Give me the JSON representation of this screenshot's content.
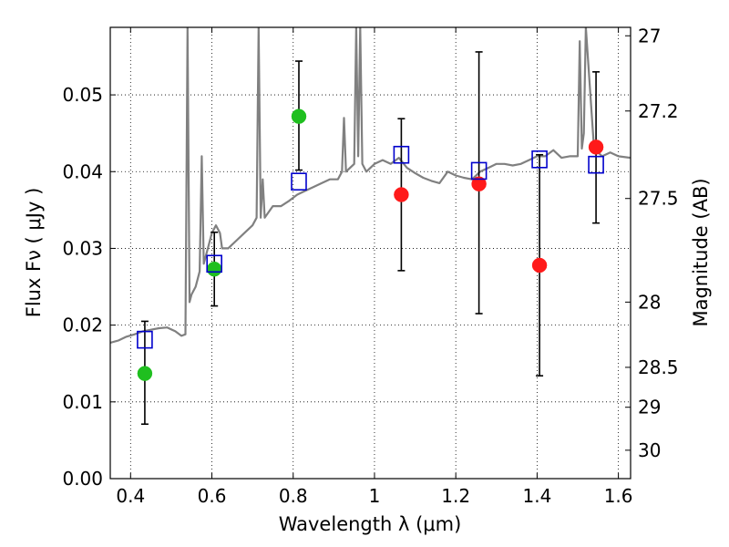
{
  "chart_data": {
    "type": "scatter",
    "xlabel": "Wavelength  λ (μm)",
    "ylabel": "Flux  Fν  ( μJy )",
    "ylabel_right": "Magnitude (AB)",
    "xlim": [
      0.35,
      1.63
    ],
    "ylim": [
      0,
      0.0588
    ],
    "x_ticks": [
      0.4,
      0.6,
      0.8,
      1.0,
      1.2,
      1.4,
      1.6
    ],
    "x_tick_labels": [
      "0.4",
      "0.6",
      "0.8",
      "1",
      "1.2",
      "1.4",
      "1.6"
    ],
    "y_ticks": [
      0.0,
      0.01,
      0.02,
      0.03,
      0.04,
      0.05
    ],
    "y_tick_labels": [
      "0.00",
      "0.01",
      "0.02",
      "0.03",
      "0.04",
      "0.05"
    ],
    "right_ticks": [
      {
        "label": "27",
        "flux": 0.0577
      },
      {
        "label": "27.2",
        "flux": 0.0479
      },
      {
        "label": "27.5",
        "flux": 0.0365
      },
      {
        "label": "28",
        "flux": 0.023
      },
      {
        "label": "28.5",
        "flux": 0.0145
      },
      {
        "label": "29",
        "flux": 0.0093
      },
      {
        "label": "30",
        "flux": 0.0037
      }
    ],
    "grid": true,
    "colors": {
      "green": "#1fbf1f",
      "red": "#ff1a1a",
      "blue": "#0000cc",
      "model": "#808080",
      "errorbar": "#000000"
    },
    "series": [
      {
        "marker": "circle-green",
        "points": [
          {
            "x": 0.435,
            "y": 0.0137,
            "ylo": 0.0071,
            "yhi": 0.0205
          },
          {
            "x": 0.606,
            "y": 0.0273,
            "ylo": 0.0225,
            "yhi": 0.0321
          },
          {
            "x": 0.814,
            "y": 0.0472,
            "ylo": 0.0402,
            "yhi": 0.0544
          }
        ]
      },
      {
        "marker": "circle-red",
        "points": [
          {
            "x": 1.066,
            "y": 0.037,
            "ylo": 0.0271,
            "yhi": 0.0469
          },
          {
            "x": 1.257,
            "y": 0.0384,
            "ylo": 0.0215,
            "yhi": 0.0556
          },
          {
            "x": 1.406,
            "y": 0.0278,
            "ylo": 0.0134,
            "yhi": 0.0422
          },
          {
            "x": 1.545,
            "y": 0.0432,
            "ylo": 0.0333,
            "yhi": 0.053
          }
        ]
      },
      {
        "marker": "square-blue",
        "points": [
          {
            "x": 0.435,
            "y": 0.0181
          },
          {
            "x": 0.606,
            "y": 0.028
          },
          {
            "x": 0.814,
            "y": 0.0387
          },
          {
            "x": 1.066,
            "y": 0.0422
          },
          {
            "x": 1.257,
            "y": 0.0401
          },
          {
            "x": 1.406,
            "y": 0.0416
          },
          {
            "x": 1.545,
            "y": 0.0409
          }
        ]
      }
    ],
    "model_spectrum": {
      "x": [
        0.35,
        0.37,
        0.39,
        0.41,
        0.43,
        0.45,
        0.47,
        0.49,
        0.51,
        0.525,
        0.535,
        0.54,
        0.545,
        0.55,
        0.56,
        0.57,
        0.575,
        0.58,
        0.59,
        0.6,
        0.61,
        0.62,
        0.625,
        0.64,
        0.66,
        0.68,
        0.7,
        0.71,
        0.715,
        0.72,
        0.725,
        0.73,
        0.75,
        0.77,
        0.79,
        0.81,
        0.83,
        0.85,
        0.87,
        0.89,
        0.91,
        0.92,
        0.925,
        0.93,
        0.95,
        0.955,
        0.96,
        0.965,
        0.97,
        0.98,
        1.0,
        1.02,
        1.04,
        1.06,
        1.08,
        1.1,
        1.12,
        1.14,
        1.16,
        1.18,
        1.2,
        1.22,
        1.24,
        1.26,
        1.28,
        1.3,
        1.32,
        1.34,
        1.36,
        1.38,
        1.4,
        1.42,
        1.44,
        1.46,
        1.48,
        1.5,
        1.505,
        1.51,
        1.515,
        1.52,
        1.54,
        1.56,
        1.58,
        1.6,
        1.63
      ],
      "y": [
        0.0177,
        0.018,
        0.0185,
        0.0188,
        0.0192,
        0.0194,
        0.0196,
        0.0197,
        0.0192,
        0.0186,
        0.0188,
        0.0588,
        0.023,
        0.024,
        0.025,
        0.027,
        0.042,
        0.028,
        0.03,
        0.032,
        0.033,
        0.032,
        0.03,
        0.03,
        0.031,
        0.032,
        0.033,
        0.034,
        0.0588,
        0.034,
        0.039,
        0.034,
        0.0355,
        0.0355,
        0.0362,
        0.037,
        0.0375,
        0.038,
        0.0385,
        0.039,
        0.039,
        0.04,
        0.047,
        0.04,
        0.041,
        0.0588,
        0.042,
        0.0588,
        0.041,
        0.04,
        0.041,
        0.0415,
        0.041,
        0.0418,
        0.0405,
        0.0398,
        0.0392,
        0.0388,
        0.0385,
        0.04,
        0.0395,
        0.0392,
        0.039,
        0.04,
        0.0405,
        0.041,
        0.041,
        0.0408,
        0.041,
        0.0415,
        0.042,
        0.042,
        0.0428,
        0.0418,
        0.042,
        0.042,
        0.057,
        0.043,
        0.045,
        0.0588,
        0.043,
        0.042,
        0.0425,
        0.042,
        0.0418
      ]
    }
  }
}
